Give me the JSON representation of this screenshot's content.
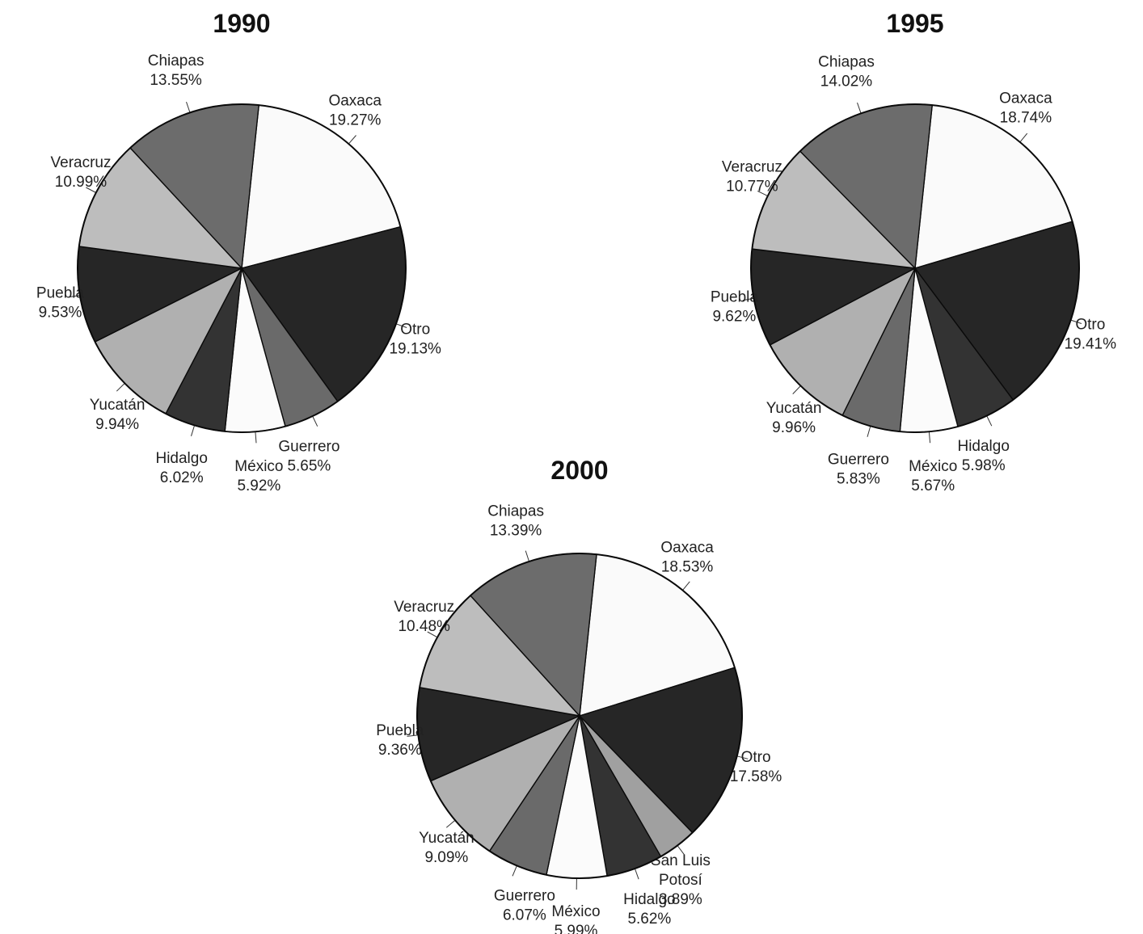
{
  "colors": {
    "Oaxaca": "#fafafa",
    "Otro": "#262626",
    "Guerrero": "#6a6a6a",
    "San Luis Potosí": "#a0a0a0",
    "México": "#fbfbfb",
    "Hidalgo": "#333333",
    "Yucatán": "#b0b0b0",
    "Puebla": "#262626",
    "Veracruz": "#bdbdbd",
    "Chiapas": "#6c6c6c"
  },
  "chart_data": [
    {
      "type": "pie",
      "title": "1990",
      "slices": [
        {
          "label": "Oaxaca",
          "value": 19.27,
          "value_label": "19.27%"
        },
        {
          "label": "Otro",
          "value": 19.13,
          "value_label": "19.13%"
        },
        {
          "label": "Guerrero",
          "value": 5.65,
          "value_label": "5.65%"
        },
        {
          "label": "México",
          "value": 5.92,
          "value_label": "5.92%"
        },
        {
          "label": "Hidalgo",
          "value": 6.02,
          "value_label": "6.02%"
        },
        {
          "label": "Yucatán",
          "value": 9.94,
          "value_label": "9.94%"
        },
        {
          "label": "Puebla",
          "value": 9.53,
          "value_label": "9.53%"
        },
        {
          "label": "Veracruz",
          "value": 10.99,
          "value_label": "10.99%"
        },
        {
          "label": "Chiapas",
          "value": 13.55,
          "value_label": "13.55%"
        }
      ]
    },
    {
      "type": "pie",
      "title": "1995",
      "slices": [
        {
          "label": "Oaxaca",
          "value": 18.74,
          "value_label": "18.74%"
        },
        {
          "label": "Otro",
          "value": 19.41,
          "value_label": "19.41%"
        },
        {
          "label": "Hidalgo",
          "value": 5.98,
          "value_label": "5.98%"
        },
        {
          "label": "México",
          "value": 5.67,
          "value_label": "5.67%"
        },
        {
          "label": "Guerrero",
          "value": 5.83,
          "value_label": "5.83%"
        },
        {
          "label": "Yucatán",
          "value": 9.96,
          "value_label": "9.96%"
        },
        {
          "label": "Puebla",
          "value": 9.62,
          "value_label": "9.62%"
        },
        {
          "label": "Veracruz",
          "value": 10.77,
          "value_label": "10.77%"
        },
        {
          "label": "Chiapas",
          "value": 14.02,
          "value_label": "14.02%"
        }
      ]
    },
    {
      "type": "pie",
      "title": "2000",
      "slices": [
        {
          "label": "Oaxaca",
          "value": 18.53,
          "value_label": "18.53%"
        },
        {
          "label": "Otro",
          "value": 17.58,
          "value_label": "17.58%"
        },
        {
          "label": "San Luis Potosí",
          "value": 3.89,
          "value_label": "3.89%"
        },
        {
          "label": "Hidalgo",
          "value": 5.62,
          "value_label": "5.62%"
        },
        {
          "label": "México",
          "value": 5.99,
          "value_label": "5.99%"
        },
        {
          "label": "Guerrero",
          "value": 6.07,
          "value_label": "6.07%"
        },
        {
          "label": "Yucatán",
          "value": 9.09,
          "value_label": "9.09%"
        },
        {
          "label": "Puebla",
          "value": 9.36,
          "value_label": "9.36%"
        },
        {
          "label": "Veracruz",
          "value": 10.48,
          "value_label": "10.48%"
        },
        {
          "label": "Chiapas",
          "value": 13.39,
          "value_label": "13.39%"
        }
      ]
    }
  ]
}
